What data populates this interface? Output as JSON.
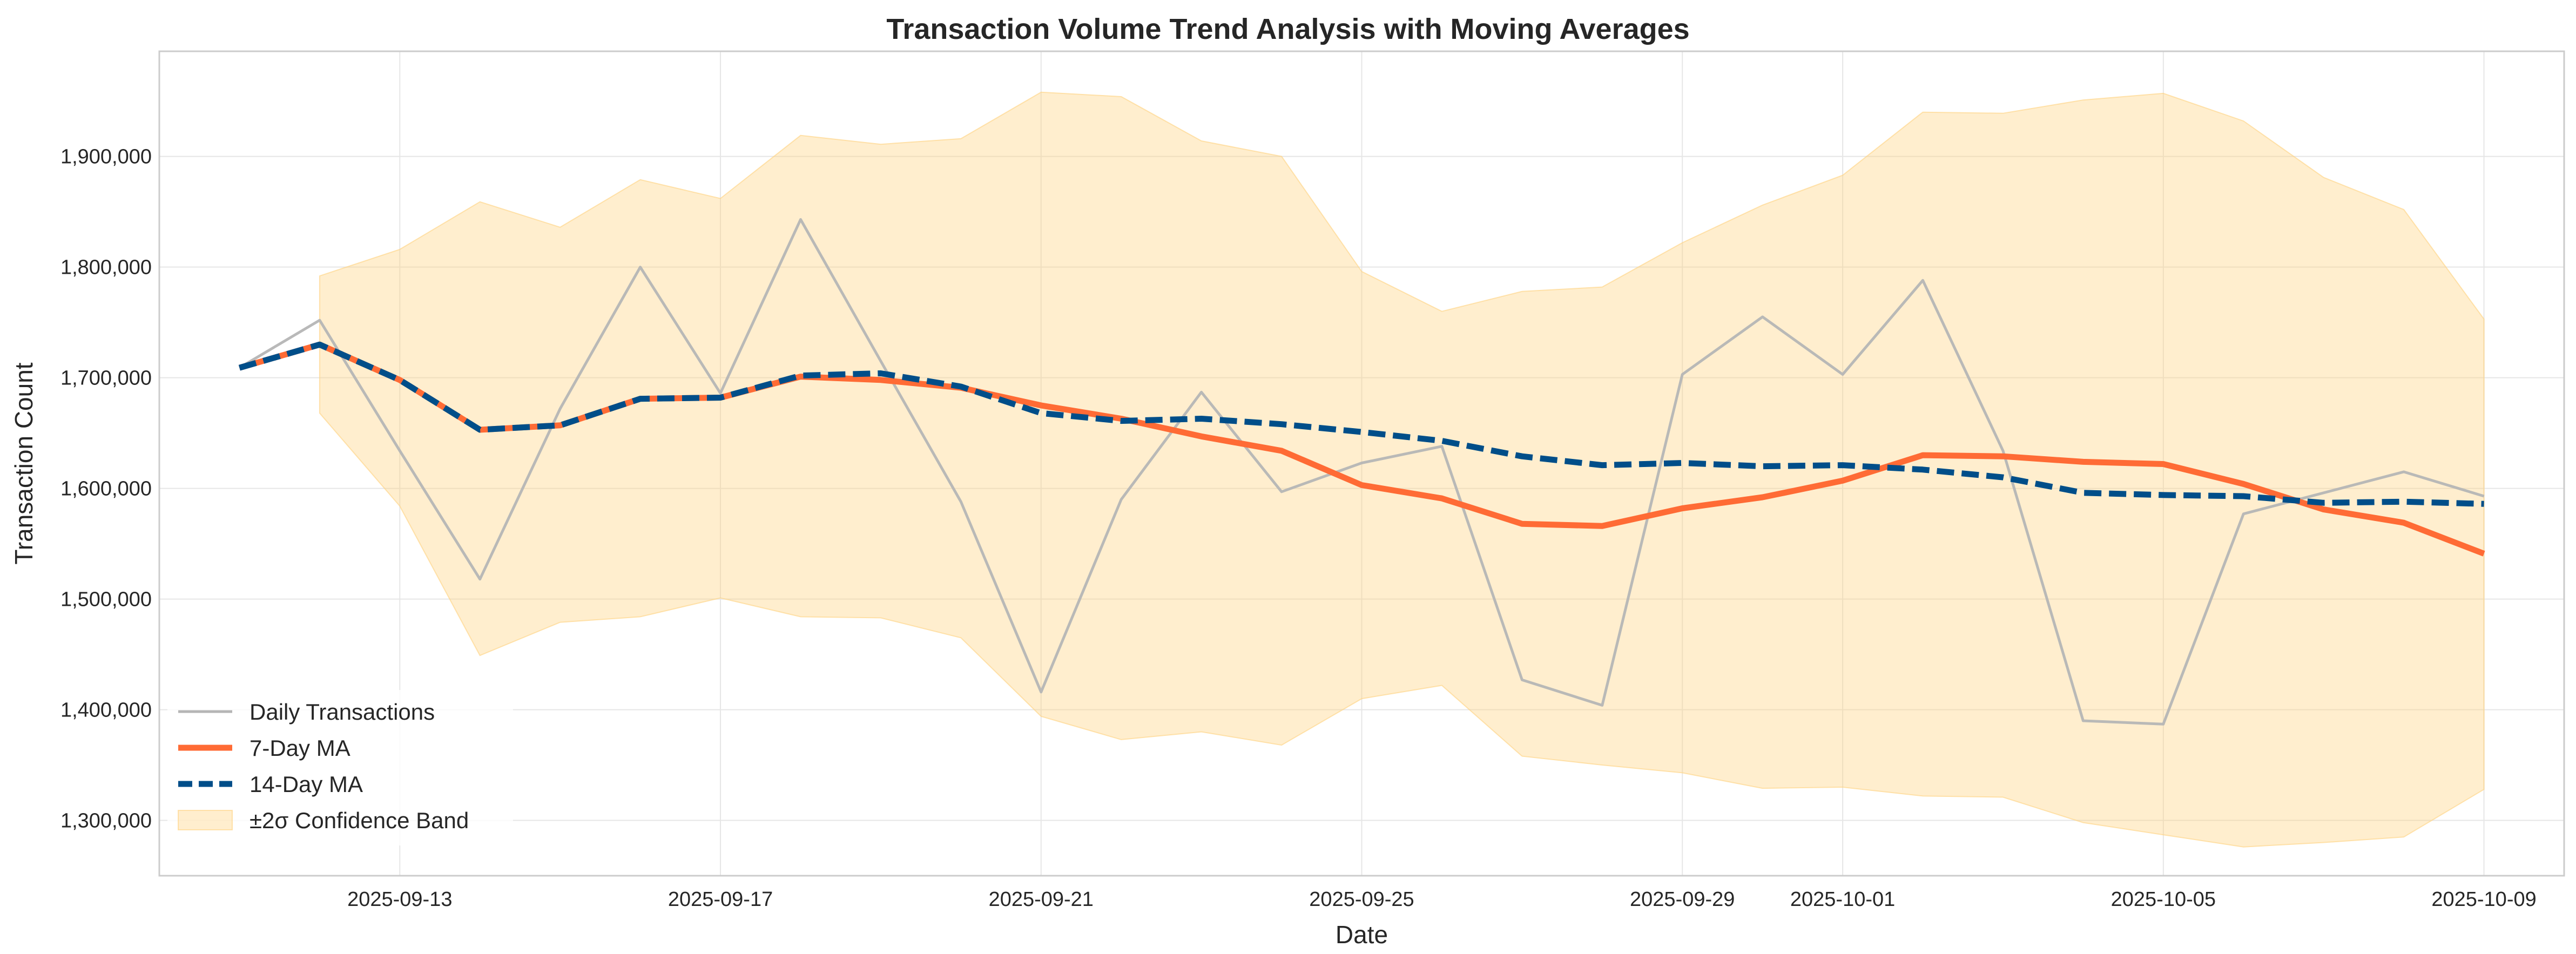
{
  "chart_data": {
    "type": "line",
    "title": "Transaction Volume Trend Analysis with Moving Averages",
    "xlabel": "Date",
    "ylabel": "Transaction Count",
    "grid": true,
    "legend_position": "lower-left",
    "x_ticks": [
      "2025-09-13",
      "2025-09-17",
      "2025-09-21",
      "2025-09-25",
      "2025-09-29",
      "2025-10-01",
      "2025-10-05",
      "2025-10-09"
    ],
    "y_ticks": [
      "1,300,000",
      "1,400,000",
      "1,500,000",
      "1,600,000",
      "1,700,000",
      "1,800,000",
      "1,900,000"
    ],
    "xlim": [
      "2025-09-10",
      "2025-10-10"
    ],
    "ylim": [
      1250000,
      1995000
    ],
    "x": [
      "2025-09-11",
      "2025-09-12",
      "2025-09-13",
      "2025-09-14",
      "2025-09-15",
      "2025-09-16",
      "2025-09-17",
      "2025-09-18",
      "2025-09-19",
      "2025-09-20",
      "2025-09-21",
      "2025-09-22",
      "2025-09-23",
      "2025-09-24",
      "2025-09-25",
      "2025-09-26",
      "2025-09-27",
      "2025-09-28",
      "2025-09-29",
      "2025-09-30",
      "2025-10-01",
      "2025-10-02",
      "2025-10-03",
      "2025-10-04",
      "2025-10-05",
      "2025-10-06",
      "2025-10-07",
      "2025-10-08",
      "2025-10-09"
    ],
    "series": [
      {
        "name": "Daily Transactions",
        "color": "#b5b5b5",
        "style": "solid",
        "values": [
          1709000,
          1752000,
          1634000,
          1518000,
          1672000,
          1800000,
          1686000,
          1843000,
          1715000,
          1588000,
          1416000,
          1590000,
          1687000,
          1597000,
          1623000,
          1638000,
          1427000,
          1404000,
          1703000,
          1755000,
          1703000,
          1788000,
          1634000,
          1390000,
          1387000,
          1577000,
          1596000,
          1615000,
          1593000
        ]
      },
      {
        "name": "7-Day MA",
        "color": "#ff6b35",
        "style": "solid",
        "values": [
          1709000,
          1730000,
          1698000,
          1653000,
          1657000,
          1681000,
          1682000,
          1701000,
          1698000,
          1691000,
          1675000,
          1663000,
          1647000,
          1634000,
          1603000,
          1591000,
          1568000,
          1566000,
          1582000,
          1592000,
          1607000,
          1630000,
          1629000,
          1624000,
          1622000,
          1604000,
          1581000,
          1569000,
          1541000
        ]
      },
      {
        "name": "14-Day MA",
        "color": "#004e89",
        "style": "dashed",
        "values": [
          1709000,
          1730000,
          1698000,
          1653000,
          1657000,
          1681000,
          1682000,
          1702000,
          1704000,
          1692000,
          1668000,
          1661000,
          1663000,
          1658000,
          1651000,
          1643000,
          1629000,
          1621000,
          1623000,
          1620000,
          1621000,
          1617000,
          1610000,
          1596000,
          1594000,
          1593000,
          1587000,
          1588000,
          1586000
        ]
      }
    ],
    "band": {
      "name": "±2σ Confidence Band",
      "color": "#ffd27f",
      "x_start": "2025-09-12",
      "upper": [
        1792000,
        1816000,
        1859000,
        1836000,
        1879000,
        1862000,
        1919000,
        1911000,
        1916000,
        1958000,
        1954000,
        1914000,
        1900000,
        1796000,
        1760000,
        1778000,
        1782000,
        1822000,
        1856000,
        1883000,
        1940000,
        1939000,
        1951000,
        1957000,
        1932000,
        1881000,
        1852000,
        1753000
      ],
      "lower": [
        1668000,
        1584000,
        1449000,
        1479000,
        1484000,
        1501000,
        1484000,
        1483000,
        1465000,
        1394000,
        1373000,
        1380000,
        1368000,
        1410000,
        1422000,
        1358000,
        1350000,
        1343000,
        1329000,
        1330000,
        1322000,
        1321000,
        1298000,
        1287000,
        1276000,
        1280000,
        1285000,
        1328000
      ]
    }
  }
}
